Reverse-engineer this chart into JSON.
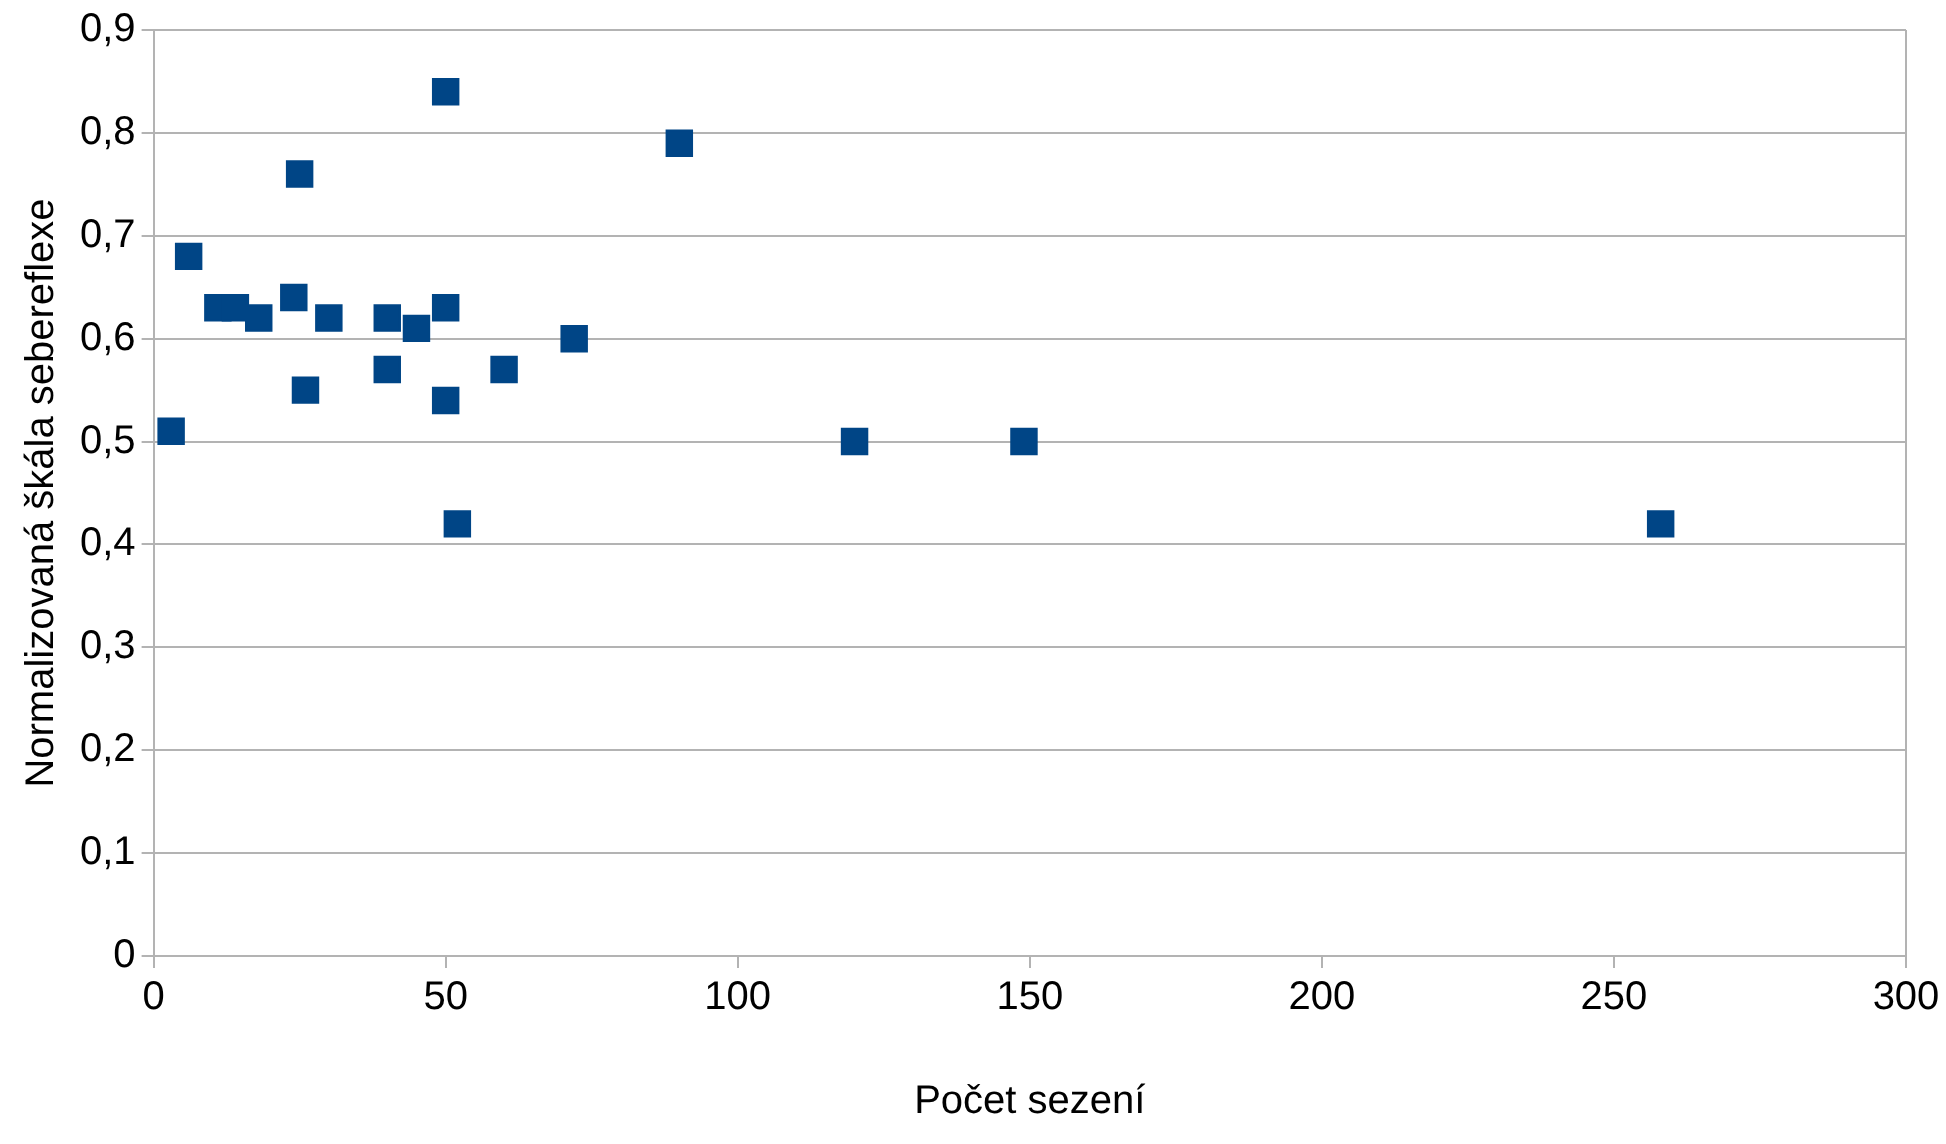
{
  "chart_data": {
    "type": "scatter",
    "xlabel": "Počet sezení",
    "ylabel": "Normalizovaná škála sebereflexe",
    "x": [
      3,
      6,
      11,
      14,
      18,
      24,
      25,
      26,
      30,
      40,
      40,
      45,
      50,
      50,
      50,
      52,
      60,
      72,
      90,
      120,
      149,
      258
    ],
    "values": [
      0.51,
      0.68,
      0.63,
      0.63,
      0.62,
      0.64,
      0.76,
      0.55,
      0.62,
      0.57,
      0.62,
      0.61,
      0.84,
      0.63,
      0.54,
      0.42,
      0.57,
      0.6,
      0.79,
      0.5,
      0.5,
      0.42
    ],
    "color": "#004586",
    "marker": "square",
    "xlim": [
      0,
      300
    ],
    "xticks": [
      0,
      50,
      100,
      150,
      200,
      250,
      300
    ],
    "ylim": [
      0,
      0.9
    ],
    "yticks": [
      {
        "value": 0,
        "label": "0"
      },
      {
        "value": 0.1,
        "label": "0,1"
      },
      {
        "value": 0.2,
        "label": "0,2"
      },
      {
        "value": 0.3,
        "label": "0,3"
      },
      {
        "value": 0.4,
        "label": "0,4"
      },
      {
        "value": 0.5,
        "label": "0,5"
      },
      {
        "value": 0.6,
        "label": "0,6"
      },
      {
        "value": 0.7,
        "label": "0,7"
      },
      {
        "value": 0.8,
        "label": "0,8"
      },
      {
        "value": 0.9,
        "label": "0,9"
      }
    ],
    "grid": "y",
    "legend": false
  }
}
